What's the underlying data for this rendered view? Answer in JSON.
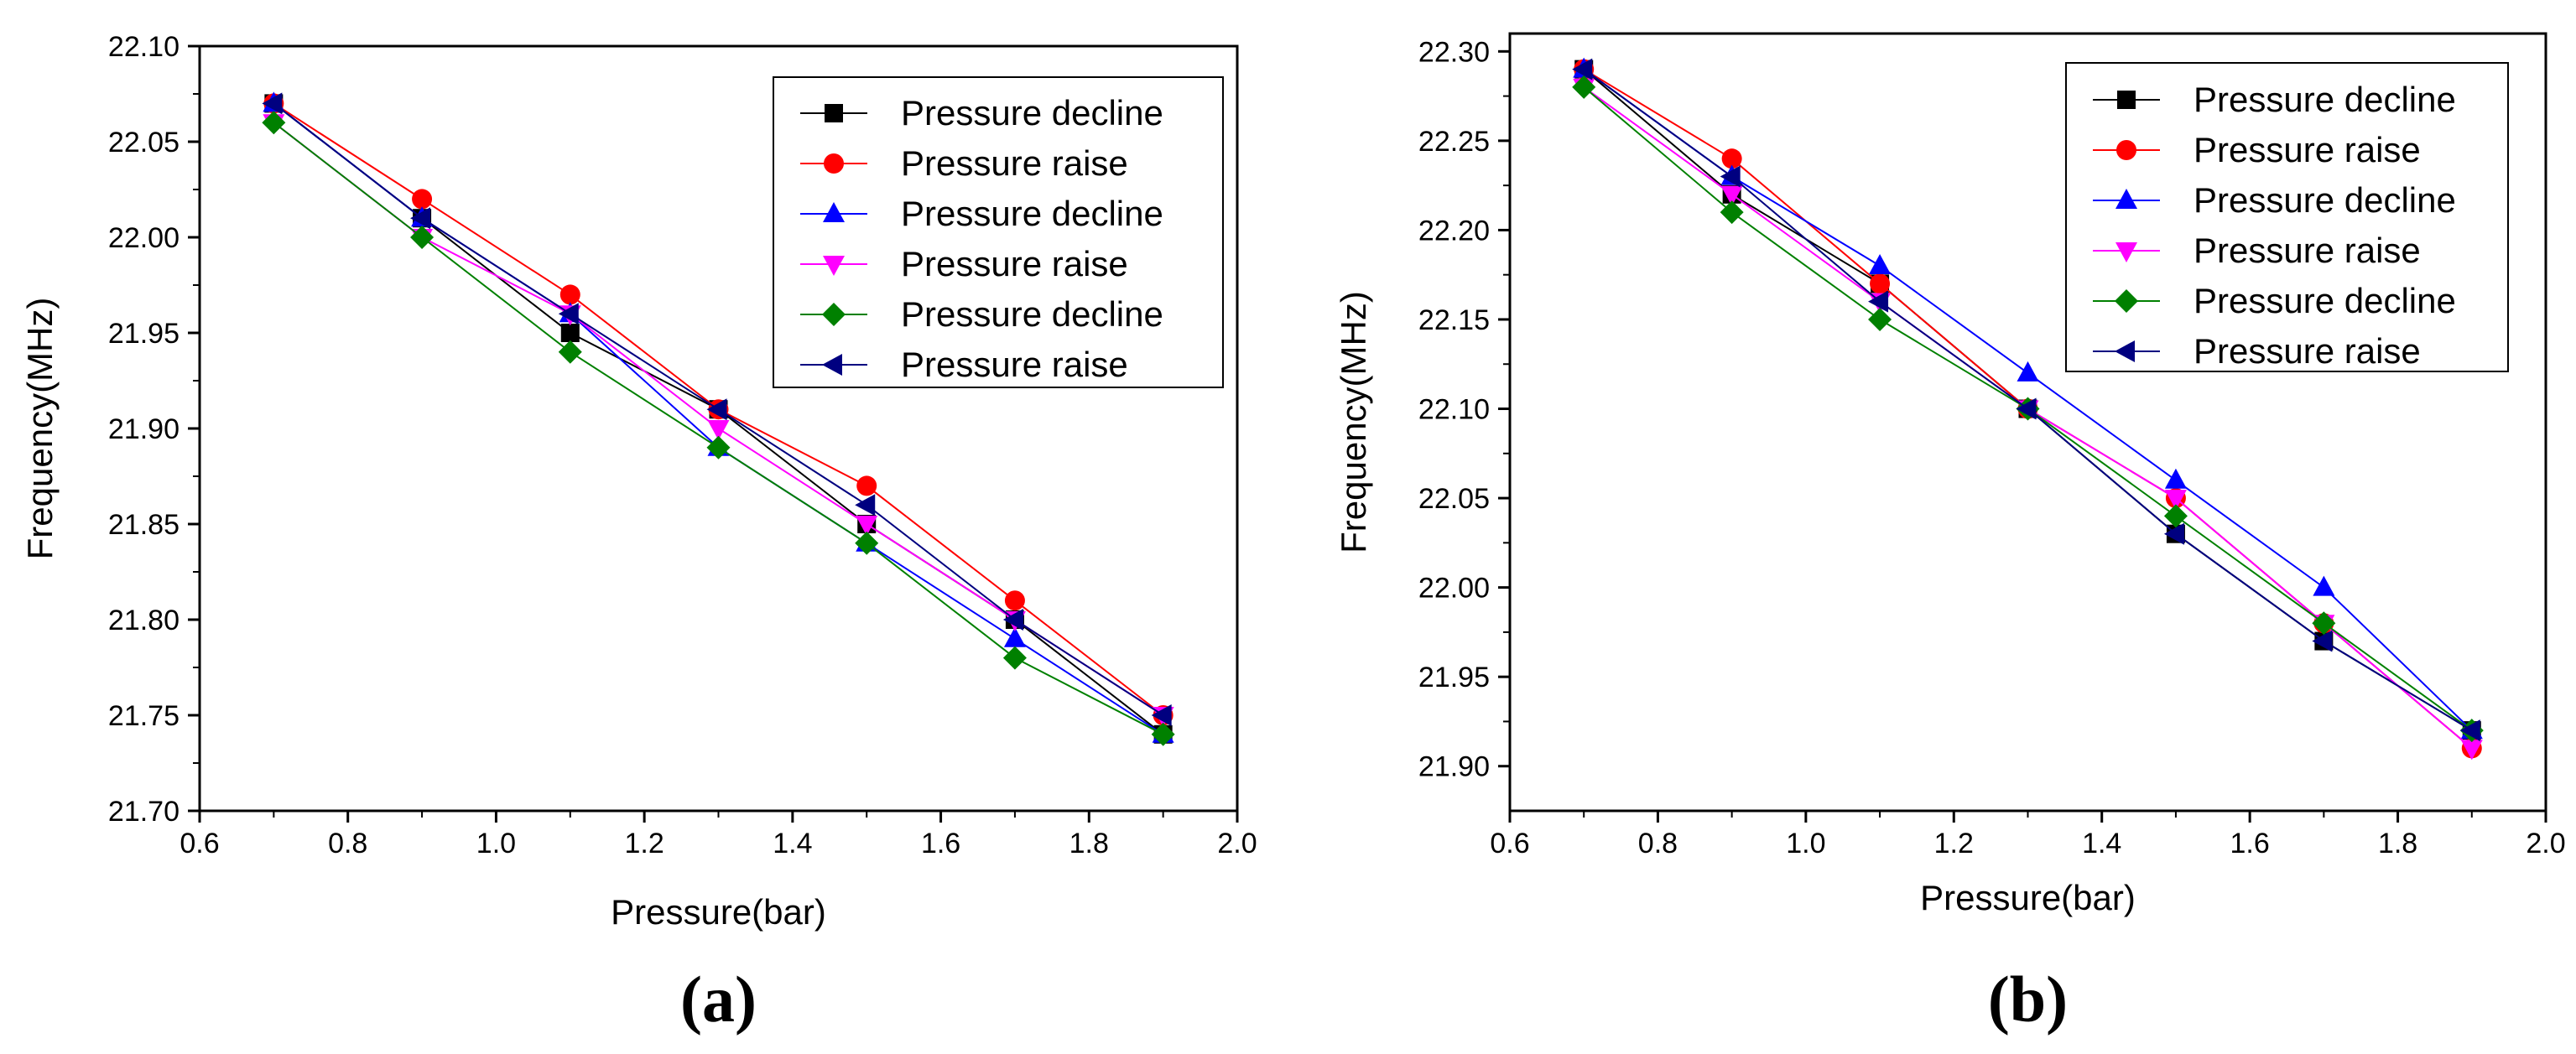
{
  "chart_data": [
    {
      "type": "line",
      "panel_label": "(a)",
      "xlabel": "Pressure(bar)",
      "ylabel": "Frequency(MHz)",
      "xlim": [
        0.6,
        2.0
      ],
      "ylim": [
        21.7,
        22.1
      ],
      "xticks": [
        "0.6",
        "0.8",
        "1.0",
        "1.2",
        "1.4",
        "1.6",
        "1.8",
        "2.0"
      ],
      "yticks": [
        "21.70",
        "21.75",
        "21.80",
        "21.85",
        "21.90",
        "21.95",
        "22.00",
        "22.05",
        "22.10"
      ],
      "legend_position": "top-right",
      "x": [
        0.7,
        0.9,
        1.1,
        1.3,
        1.5,
        1.7,
        1.9
      ],
      "series": [
        {
          "name": "Pressure decline",
          "color": "#000000",
          "marker": "square",
          "values": [
            22.07,
            22.01,
            21.95,
            21.91,
            21.85,
            21.8,
            21.74
          ]
        },
        {
          "name": "Pressure raise",
          "color": "#ff0000",
          "marker": "circle",
          "values": [
            22.07,
            22.02,
            21.97,
            21.91,
            21.87,
            21.81,
            21.75
          ]
        },
        {
          "name": "Pressure decline",
          "color": "#0000ff",
          "marker": "triangle-up",
          "values": [
            22.07,
            22.01,
            21.96,
            21.89,
            21.84,
            21.79,
            21.74
          ]
        },
        {
          "name": "Pressure raise",
          "color": "#ff00ff",
          "marker": "triangle-down",
          "values": [
            22.06,
            22.0,
            21.96,
            21.9,
            21.85,
            21.8,
            21.75
          ]
        },
        {
          "name": "Pressure decline",
          "color": "#008000",
          "marker": "diamond",
          "values": [
            22.06,
            22.0,
            21.94,
            21.89,
            21.84,
            21.78,
            21.74
          ]
        },
        {
          "name": "Pressure raise",
          "color": "#000080",
          "marker": "triangle-left",
          "values": [
            22.07,
            22.01,
            21.96,
            21.91,
            21.86,
            21.8,
            21.75
          ]
        }
      ]
    },
    {
      "type": "line",
      "panel_label": "(b)",
      "xlabel": "Pressure(bar)",
      "ylabel": "Frequency(MHz)",
      "xlim": [
        0.6,
        2.0
      ],
      "ylim": [
        21.875,
        22.31
      ],
      "xticks": [
        "0.6",
        "0.8",
        "1.0",
        "1.2",
        "1.4",
        "1.6",
        "1.8",
        "2.0"
      ],
      "yticks": [
        "21.90",
        "21.95",
        "22.00",
        "22.05",
        "22.10",
        "22.15",
        "22.20",
        "22.25",
        "22.30"
      ],
      "legend_position": "top-right",
      "x": [
        0.7,
        0.9,
        1.1,
        1.3,
        1.5,
        1.7,
        1.9
      ],
      "series": [
        {
          "name": "Pressure decline",
          "color": "#000000",
          "marker": "square",
          "values": [
            22.29,
            22.22,
            22.17,
            22.1,
            22.03,
            21.97,
            21.92
          ]
        },
        {
          "name": "Pressure raise",
          "color": "#ff0000",
          "marker": "circle",
          "values": [
            22.29,
            22.24,
            22.17,
            22.1,
            22.05,
            21.98,
            21.91
          ]
        },
        {
          "name": "Pressure decline",
          "color": "#0000ff",
          "marker": "triangle-up",
          "values": [
            22.29,
            22.23,
            22.18,
            22.12,
            22.06,
            22.0,
            21.92
          ]
        },
        {
          "name": "Pressure raise",
          "color": "#ff00ff",
          "marker": "triangle-down",
          "values": [
            22.28,
            22.22,
            22.16,
            22.1,
            22.05,
            21.98,
            21.91
          ]
        },
        {
          "name": "Pressure decline",
          "color": "#008000",
          "marker": "diamond",
          "values": [
            22.28,
            22.21,
            22.15,
            22.1,
            22.04,
            21.98,
            21.92
          ]
        },
        {
          "name": "Pressure raise",
          "color": "#000080",
          "marker": "triangle-left",
          "values": [
            22.29,
            22.23,
            22.16,
            22.1,
            22.03,
            21.97,
            21.92
          ]
        }
      ]
    }
  ]
}
